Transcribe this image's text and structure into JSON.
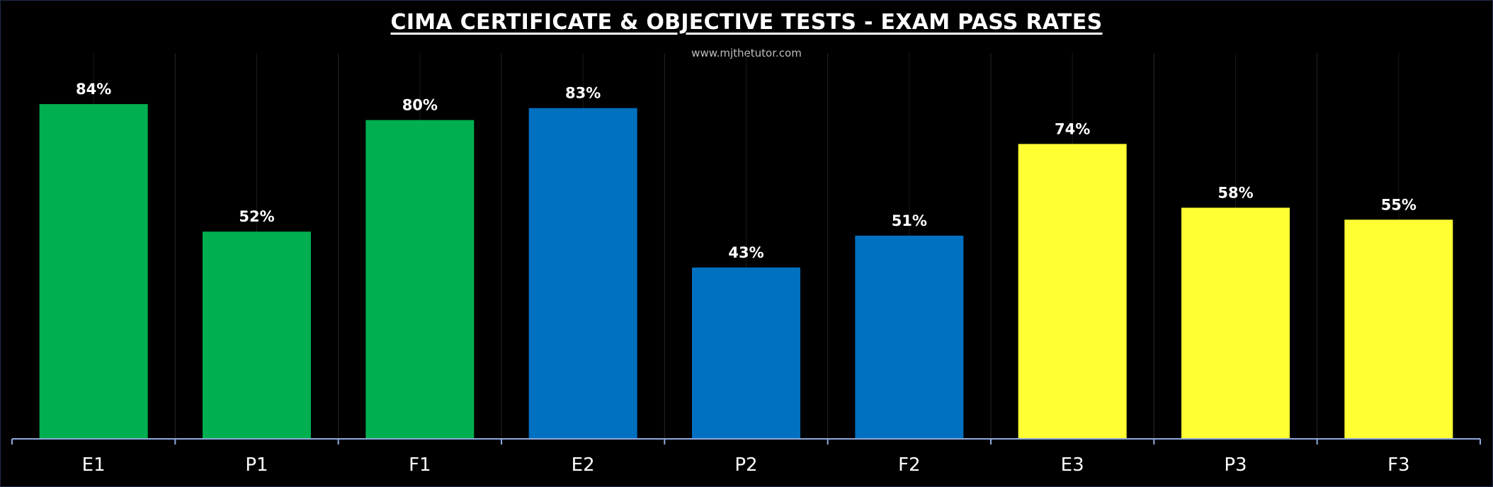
{
  "chart_data": {
    "type": "bar",
    "title": "CIMA CERTIFICATE & OBJECTIVE TESTS - EXAM PASS RATES",
    "subtitle": "www.mjthetutor.com",
    "xlabel": "",
    "ylabel": "",
    "categories": [
      "E1",
      "P1",
      "F1",
      "E2",
      "P2",
      "F2",
      "E3",
      "P3",
      "F3"
    ],
    "values": [
      84,
      52,
      80,
      83,
      43,
      51,
      74,
      58,
      55
    ],
    "data_labels": [
      "84%",
      "52%",
      "80%",
      "83%",
      "43%",
      "51%",
      "74%",
      "58%",
      "55%"
    ],
    "bar_colors": [
      "#00b050",
      "#00b050",
      "#00b050",
      "#0070c0",
      "#0070c0",
      "#0070c0",
      "#ffff33",
      "#ffff33",
      "#ffff33"
    ],
    "ylim": [
      0,
      100
    ],
    "grid": "vertical",
    "legend": "none"
  },
  "colors": {
    "background": "#000000",
    "axis": "#8ea9db",
    "gridline": "#262626",
    "text": "#ffffff"
  }
}
